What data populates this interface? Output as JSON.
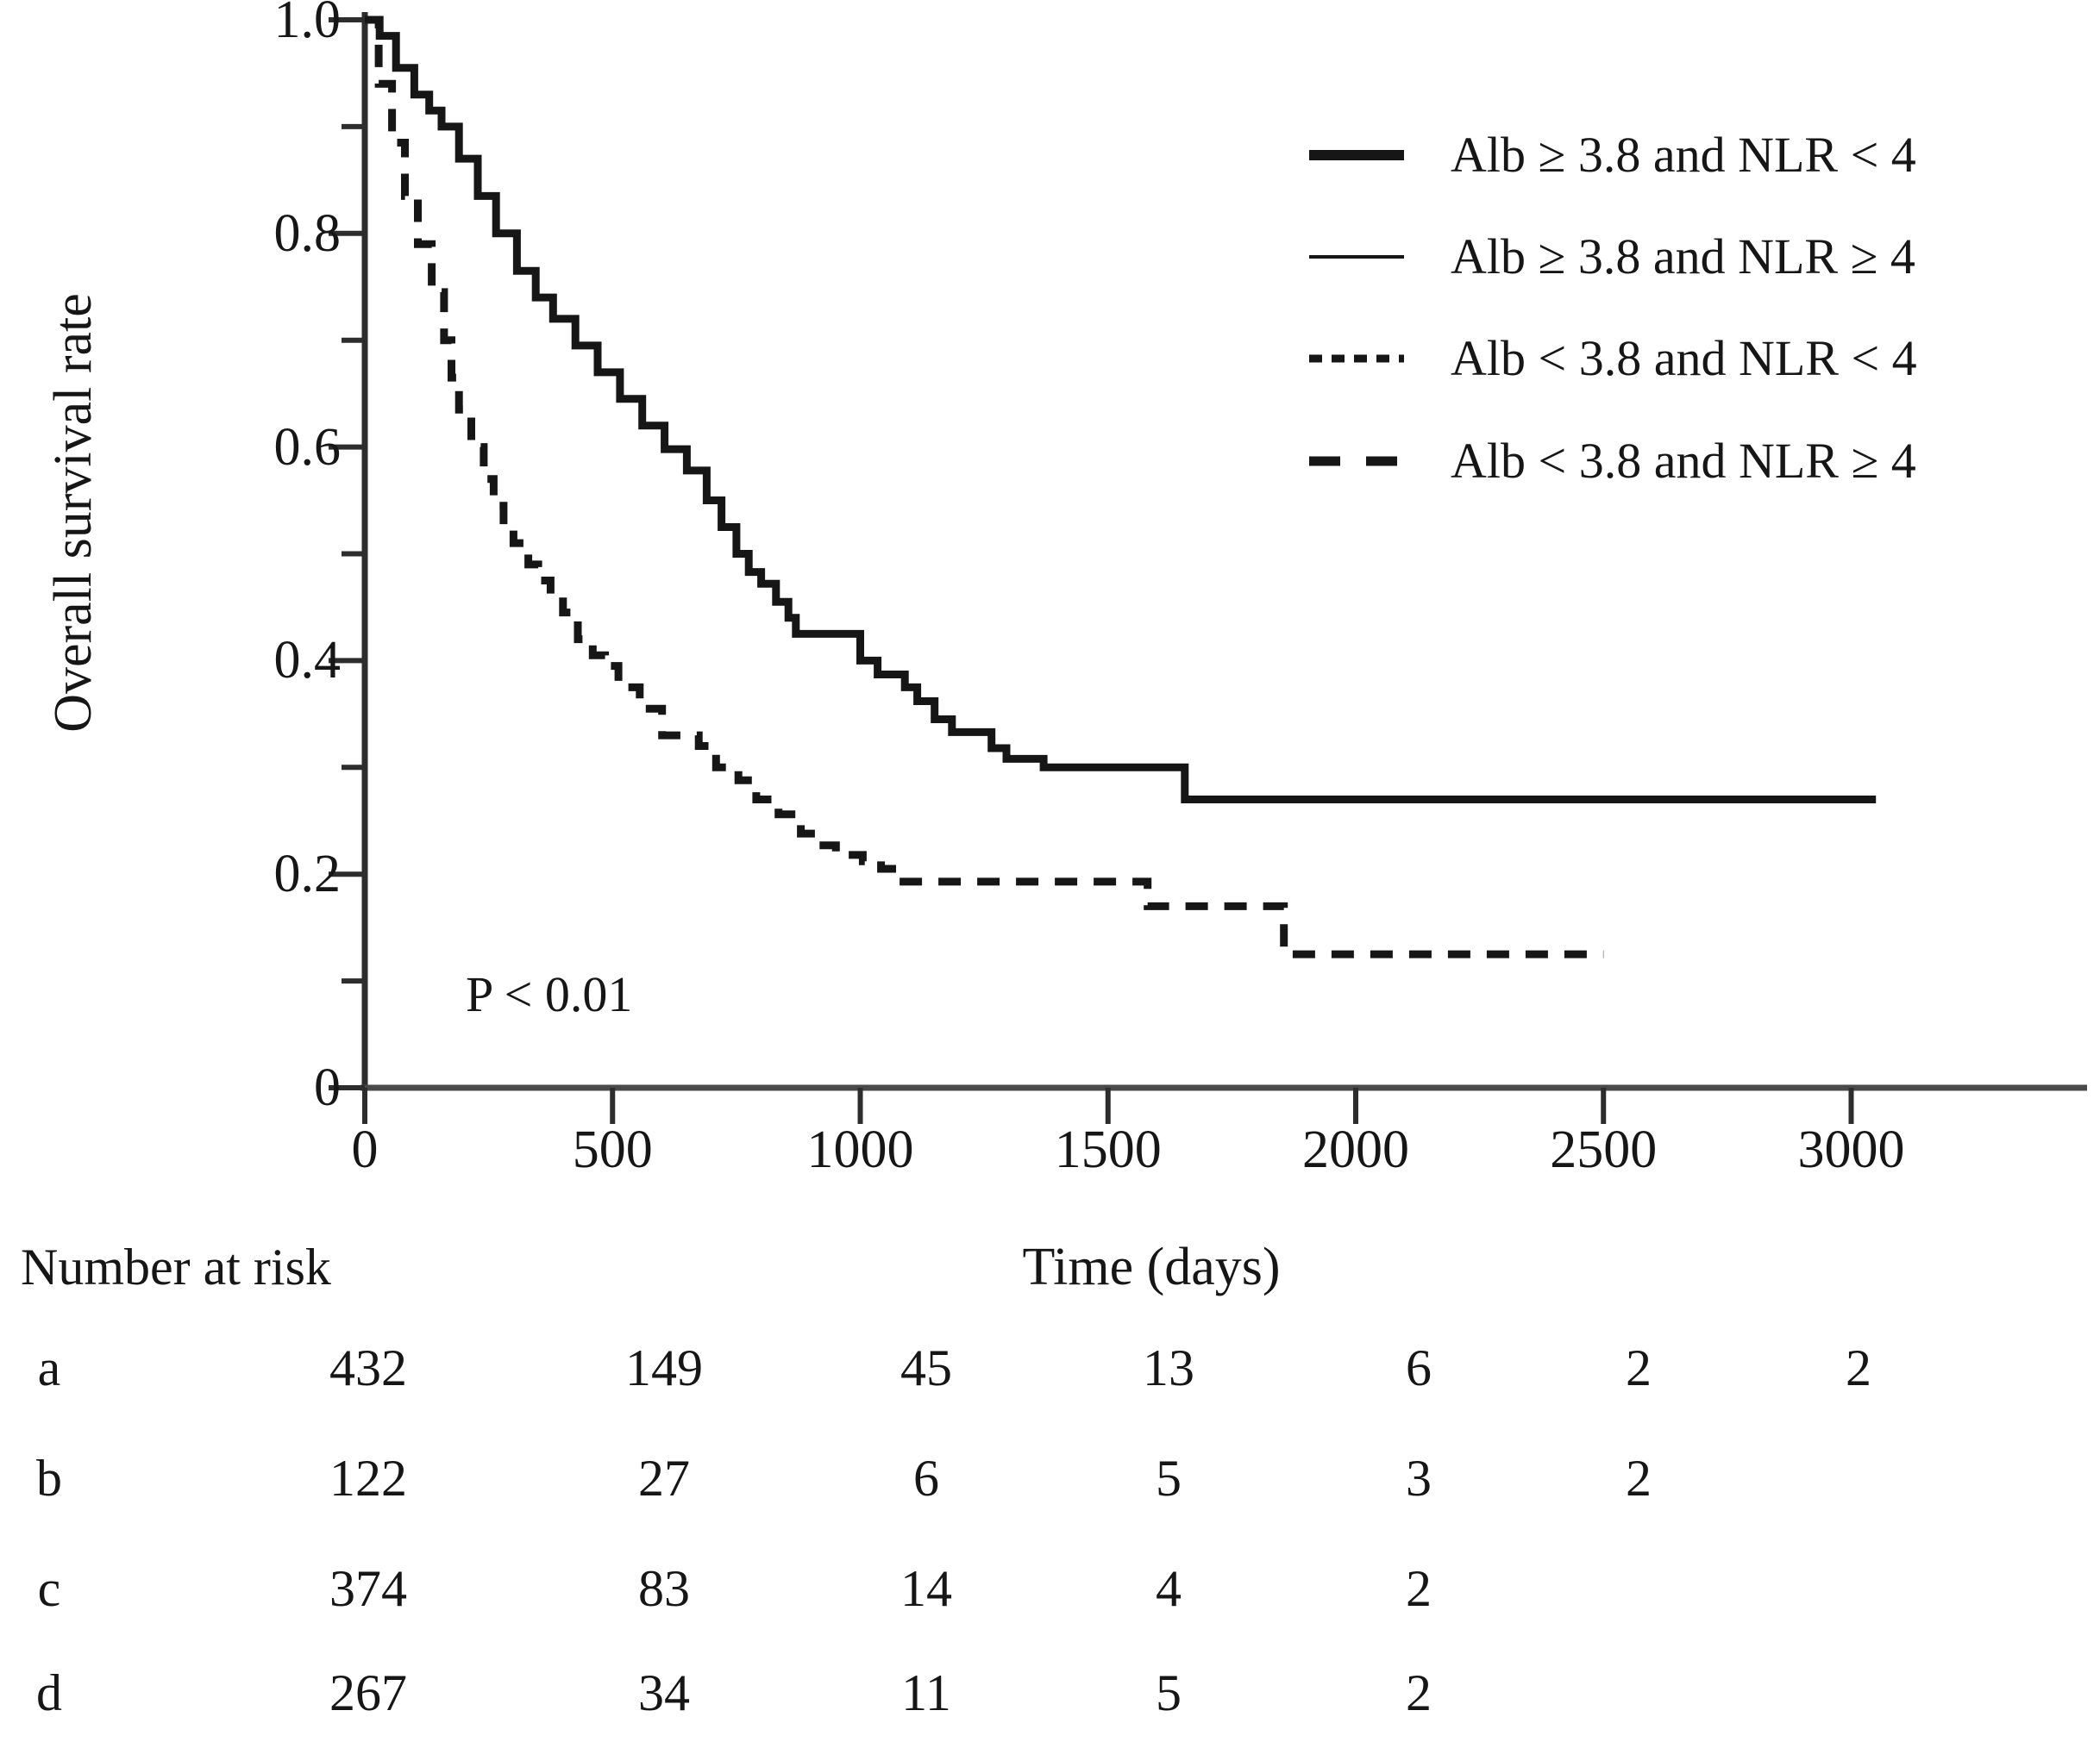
{
  "figure": {
    "background": "#ffffff",
    "ink_color": "#161616",
    "axis_color": "#2d2d2d"
  },
  "chart_data": {
    "type": "line",
    "subtype": "kaplan-meier-step",
    "title": "",
    "xlabel": "Time (days)",
    "ylabel": "Overall survival rate",
    "annotation": "P < 0.01",
    "xlim": [
      0,
      3450
    ],
    "ylim": [
      0,
      1.0
    ],
    "x_ticks": [
      0,
      500,
      1000,
      1500,
      2000,
      2500,
      3000
    ],
    "y_ticks_major": [
      1.0,
      0.8,
      0.6,
      0.4,
      0.2,
      0
    ],
    "y_tick_labels": [
      "1.0",
      "0.8",
      "0.6",
      "0.4",
      "0.2",
      "0"
    ],
    "y_ticks_minor": [
      0.9,
      0.7,
      0.5,
      0.3,
      0.1
    ],
    "grid": false,
    "legend_position": "upper-right",
    "legend": [
      {
        "label": "Alb ≥ 3.8 and NLR < 4",
        "line_style": "solid",
        "line_weight": "thick"
      },
      {
        "label": "Alb ≥ 3.8 and NLR ≥ 4",
        "line_style": "solid",
        "line_weight": "thin"
      },
      {
        "label": "Alb < 3.8 and NLR < 4",
        "line_style": "short-dash",
        "line_weight": "medium"
      },
      {
        "label": "Alb < 3.8 and NLR ≥ 4",
        "line_style": "long-dash",
        "line_weight": "thick"
      }
    ],
    "series": [
      {
        "name": "Alb ≥ 3.8 and NLR < 4",
        "style": "thick-solid",
        "points": [
          [
            0,
            1.0
          ],
          [
            30,
            0.985
          ],
          [
            63,
            0.955
          ],
          [
            100,
            0.93
          ],
          [
            130,
            0.915
          ],
          [
            155,
            0.9
          ],
          [
            190,
            0.87
          ],
          [
            228,
            0.835
          ],
          [
            265,
            0.8
          ],
          [
            307,
            0.765
          ],
          [
            345,
            0.74
          ],
          [
            380,
            0.72
          ],
          [
            425,
            0.695
          ],
          [
            470,
            0.67
          ],
          [
            515,
            0.645
          ],
          [
            560,
            0.62
          ],
          [
            605,
            0.598
          ],
          [
            650,
            0.578
          ],
          [
            690,
            0.55
          ],
          [
            720,
            0.525
          ],
          [
            750,
            0.5
          ],
          [
            775,
            0.483
          ],
          [
            800,
            0.472
          ],
          [
            830,
            0.455
          ],
          [
            855,
            0.44
          ],
          [
            870,
            0.425
          ],
          [
            1000,
            0.4
          ],
          [
            1035,
            0.387
          ],
          [
            1090,
            0.375
          ],
          [
            1115,
            0.362
          ],
          [
            1150,
            0.345
          ],
          [
            1185,
            0.333
          ],
          [
            1265,
            0.318
          ],
          [
            1295,
            0.308
          ],
          [
            1370,
            0.3
          ],
          [
            1655,
            0.27
          ],
          [
            3050,
            0.27
          ]
        ]
      },
      {
        "name": "Alb < 3.8 and NLR ≥ 4",
        "style": "thick-long-dash",
        "points": [
          [
            0,
            1.0
          ],
          [
            28,
            0.94
          ],
          [
            55,
            0.885
          ],
          [
            81,
            0.835
          ],
          [
            107,
            0.79
          ],
          [
            135,
            0.745
          ],
          [
            160,
            0.7
          ],
          [
            175,
            0.665
          ],
          [
            190,
            0.635
          ],
          [
            215,
            0.6
          ],
          [
            240,
            0.57
          ],
          [
            260,
            0.545
          ],
          [
            280,
            0.525
          ],
          [
            300,
            0.51
          ],
          [
            330,
            0.49
          ],
          [
            350,
            0.475
          ],
          [
            375,
            0.46
          ],
          [
            400,
            0.445
          ],
          [
            430,
            0.42
          ],
          [
            460,
            0.405
          ],
          [
            485,
            0.395
          ],
          [
            512,
            0.375
          ],
          [
            555,
            0.355
          ],
          [
            600,
            0.33
          ],
          [
            674,
            0.32
          ],
          [
            709,
            0.3
          ],
          [
            754,
            0.288
          ],
          [
            790,
            0.27
          ],
          [
            835,
            0.256
          ],
          [
            880,
            0.238
          ],
          [
            915,
            0.227
          ],
          [
            951,
            0.218
          ],
          [
            1005,
            0.212
          ],
          [
            1042,
            0.205
          ],
          [
            1075,
            0.193
          ],
          [
            1580,
            0.17
          ],
          [
            1855,
            0.125
          ],
          [
            2500,
            0.125
          ]
        ]
      }
    ],
    "number_at_risk": {
      "title": "Number at risk",
      "rows": [
        {
          "label": "a",
          "values": [
            "432",
            "149",
            "45",
            "13",
            "6",
            "2",
            "2"
          ]
        },
        {
          "label": "b",
          "values": [
            "122",
            "27",
            "6",
            "5",
            "3",
            "2"
          ]
        },
        {
          "label": "c",
          "values": [
            "374",
            "83",
            "14",
            "4",
            "2"
          ]
        },
        {
          "label": "d",
          "values": [
            "267",
            "34",
            "11",
            "5",
            "2"
          ]
        }
      ]
    }
  }
}
